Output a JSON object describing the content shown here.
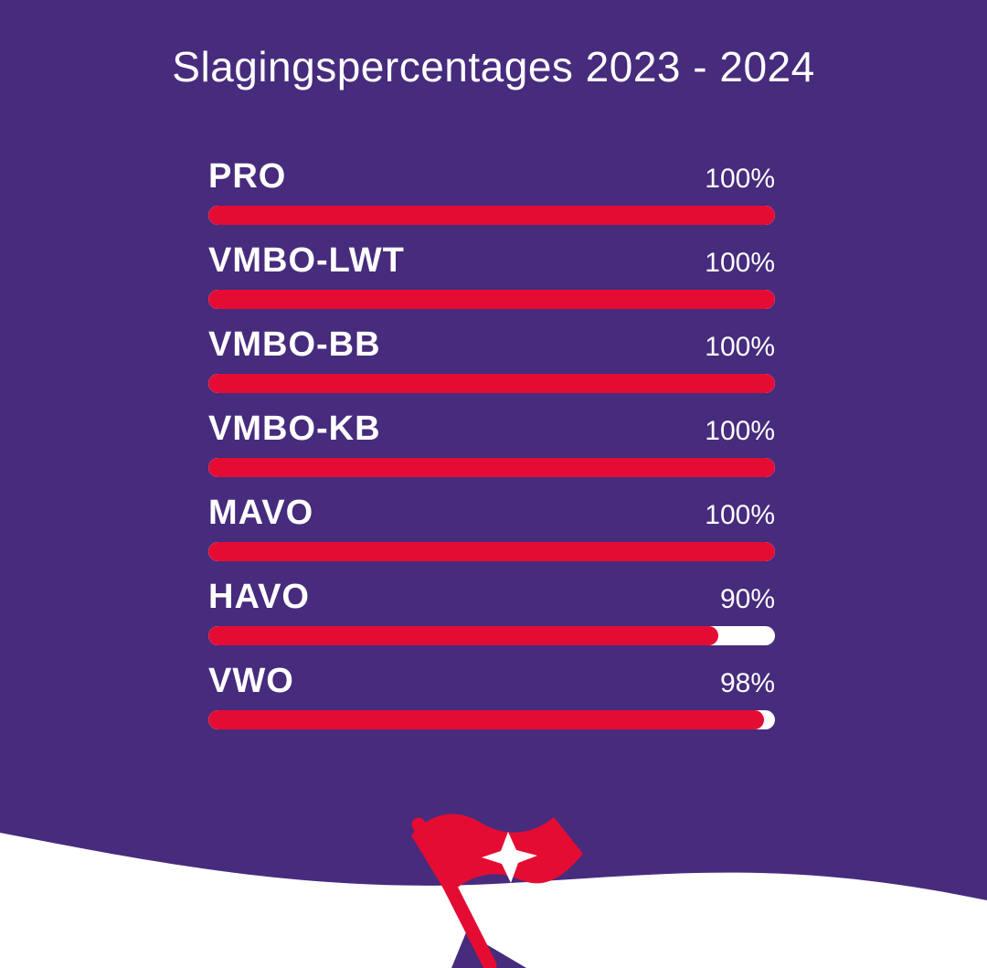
{
  "title": "Slagingspercentages 2023 - 2024",
  "colors": {
    "background": "#472b7d",
    "bar_fill": "#e40c33",
    "bar_track": "#ffffff",
    "text": "#ffffff",
    "wave": "#ffffff"
  },
  "rows": [
    {
      "label": "PRO",
      "percent": "100%",
      "value": 100
    },
    {
      "label": "VMBO-LWT",
      "percent": "100%",
      "value": 100
    },
    {
      "label": "VMBO-BB",
      "percent": "100%",
      "value": 100
    },
    {
      "label": "VMBO-KB",
      "percent": "100%",
      "value": 100
    },
    {
      "label": "MAVO",
      "percent": "100%",
      "value": 100
    },
    {
      "label": "HAVO",
      "percent": "90%",
      "value": 90
    },
    {
      "label": "VWO",
      "percent": "98%",
      "value": 98
    }
  ],
  "chart_data": {
    "type": "bar",
    "orientation": "horizontal",
    "title": "Slagingspercentages 2023 - 2024",
    "categories": [
      "PRO",
      "VMBO-LWT",
      "VMBO-BB",
      "VMBO-KB",
      "MAVO",
      "HAVO",
      "VWO"
    ],
    "values": [
      100,
      100,
      100,
      100,
      100,
      90,
      98
    ],
    "value_labels": [
      "100%",
      "100%",
      "100%",
      "100%",
      "100%",
      "90%",
      "98%"
    ],
    "xlim": [
      0,
      100
    ],
    "value_suffix": "%",
    "grid": false,
    "legend": false
  },
  "footer": {
    "logo_icon": "flag-logo"
  }
}
